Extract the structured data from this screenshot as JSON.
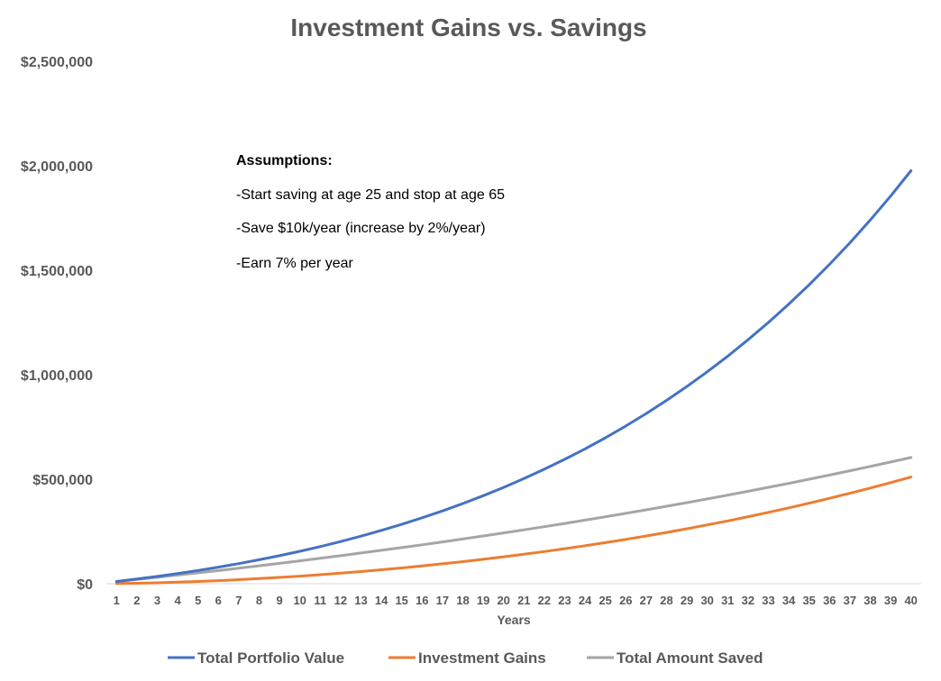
{
  "chart_data": {
    "type": "line",
    "title": "Investment Gains vs. Savings",
    "xlabel": "Years",
    "ylabel": "",
    "x": [
      1,
      2,
      3,
      4,
      5,
      6,
      7,
      8,
      9,
      10,
      11,
      12,
      13,
      14,
      15,
      16,
      17,
      18,
      19,
      20,
      21,
      22,
      23,
      24,
      25,
      26,
      27,
      28,
      29,
      30,
      31,
      32,
      33,
      34,
      35,
      36,
      37,
      38,
      39,
      40
    ],
    "ylim": [
      0,
      2500000
    ],
    "yticks": [
      0,
      500000,
      1000000,
      1500000,
      2000000,
      2500000
    ],
    "ytick_labels": [
      "$0",
      "$500,000",
      "$1,000,000",
      "$1,500,000",
      "$2,000,000",
      "$2,500,000"
    ],
    "grid": false,
    "legend_position": "bottom",
    "series": [
      {
        "name": "Total Portfolio Value",
        "color": "#4472C4",
        "values": [
          10700,
          22324,
          34923,
          48550,
          63260,
          79112,
          96166,
          114487,
          134140,
          155197,
          177729,
          201813,
          227529,
          254961,
          284196,
          315326,
          348447,
          383662,
          421075,
          460799,
          502954,
          547661,
          595049,
          645253,
          698417,
          754692,
          814235,
          877214,
          943805,
          1014194,
          1088576,
          1167159,
          1250162,
          1337816,
          1430368,
          1528076,
          1631214,
          1740071,
          1854954,
          1976189
        ]
      },
      {
        "name": "Investment Gains",
        "color": "#ED7D31",
        "values": [
          700,
          2124,
          4323,
          7158,
          10600,
          14626,
          19216,
          24366,
          30058,
          36301,
          43086,
          50408,
          58266,
          66664,
          75604,
          85092,
          95135,
          105740,
          116918,
          128678,
          141033,
          153996,
          167581,
          181803,
          196677,
          212218,
          228443,
          245372,
          263022,
          281411,
          300560,
          320488,
          341215,
          362763,
          385153,
          408407,
          432547,
          457597,
          483580,
          510522
        ]
      },
      {
        "name": "Total Amount Saved",
        "color": "#A5A5A5",
        "values": [
          10000,
          20200,
          30604,
          41216,
          52040,
          63081,
          74343,
          85830,
          97546,
          109497,
          121687,
          134121,
          146803,
          159739,
          172934,
          186393,
          200121,
          214123,
          228406,
          242974,
          257833,
          272990,
          288450,
          304219,
          320303,
          336709,
          353443,
          370513,
          387923,
          405681,
          423794,
          442270,
          461116,
          480338,
          499945,
          519944,
          540343,
          561150,
          582373,
          604020
        ]
      }
    ],
    "annotations": {
      "heading": "Assumptions:",
      "lines": [
        "-Start saving at age 25 and stop at age 65",
        "-Save $10k/year (increase by 2%/year)",
        "-Earn 7% per year"
      ]
    }
  }
}
